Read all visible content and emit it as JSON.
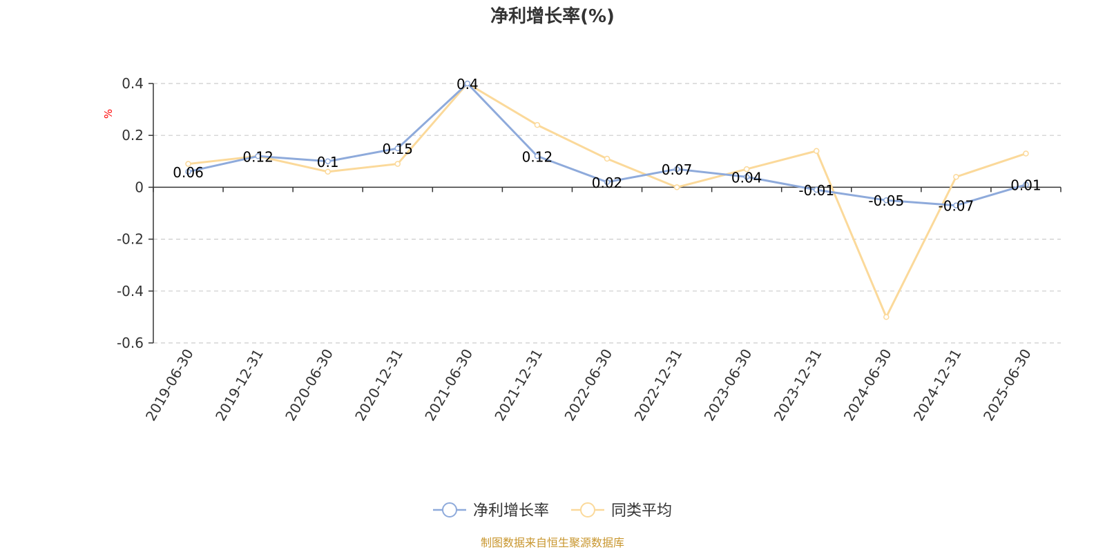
{
  "chart_data": {
    "type": "line",
    "title": "净利增长率(%)",
    "ylabel": "%",
    "xlabel": "",
    "x": [
      "2019-06-30",
      "2019-12-31",
      "2020-06-30",
      "2020-12-31",
      "2021-06-30",
      "2021-12-31",
      "2022-06-30",
      "2022-12-31",
      "2023-06-30",
      "2023-12-31",
      "2024-06-30",
      "2024-12-31",
      "2025-06-30"
    ],
    "ylim": [
      -0.6,
      0.4
    ],
    "yticks": [
      0.4,
      0.2,
      0,
      -0.2,
      -0.4,
      -0.6
    ],
    "ytick_labels": [
      "0.4",
      "0.2",
      "0",
      "-0.2",
      "-0.4",
      "-0.6"
    ],
    "grid": true,
    "legend_position": "bottom",
    "series": [
      {
        "name": "净利增长率",
        "color": "#8eaadb",
        "values": [
          0.06,
          0.12,
          0.1,
          0.15,
          0.4,
          0.12,
          0.02,
          0.07,
          0.04,
          -0.01,
          -0.05,
          -0.07,
          0.01
        ],
        "labels": [
          "0.06",
          "0.12",
          "0.1",
          "0.15",
          "0.4",
          "0.12",
          "0.02",
          "0.07",
          "0.04",
          "-0.01",
          "-0.05",
          "-0.07",
          "0.01"
        ]
      },
      {
        "name": "同类平均",
        "color": "#fbd99a",
        "values": [
          0.09,
          0.12,
          0.06,
          0.09,
          0.4,
          0.24,
          0.11,
          0.0,
          0.07,
          0.14,
          -0.5,
          0.04,
          0.13
        ]
      }
    ],
    "unit_color": "#ff0000",
    "source": "制图数据来自恒生聚源数据库",
    "source_color": "#c8962e"
  }
}
